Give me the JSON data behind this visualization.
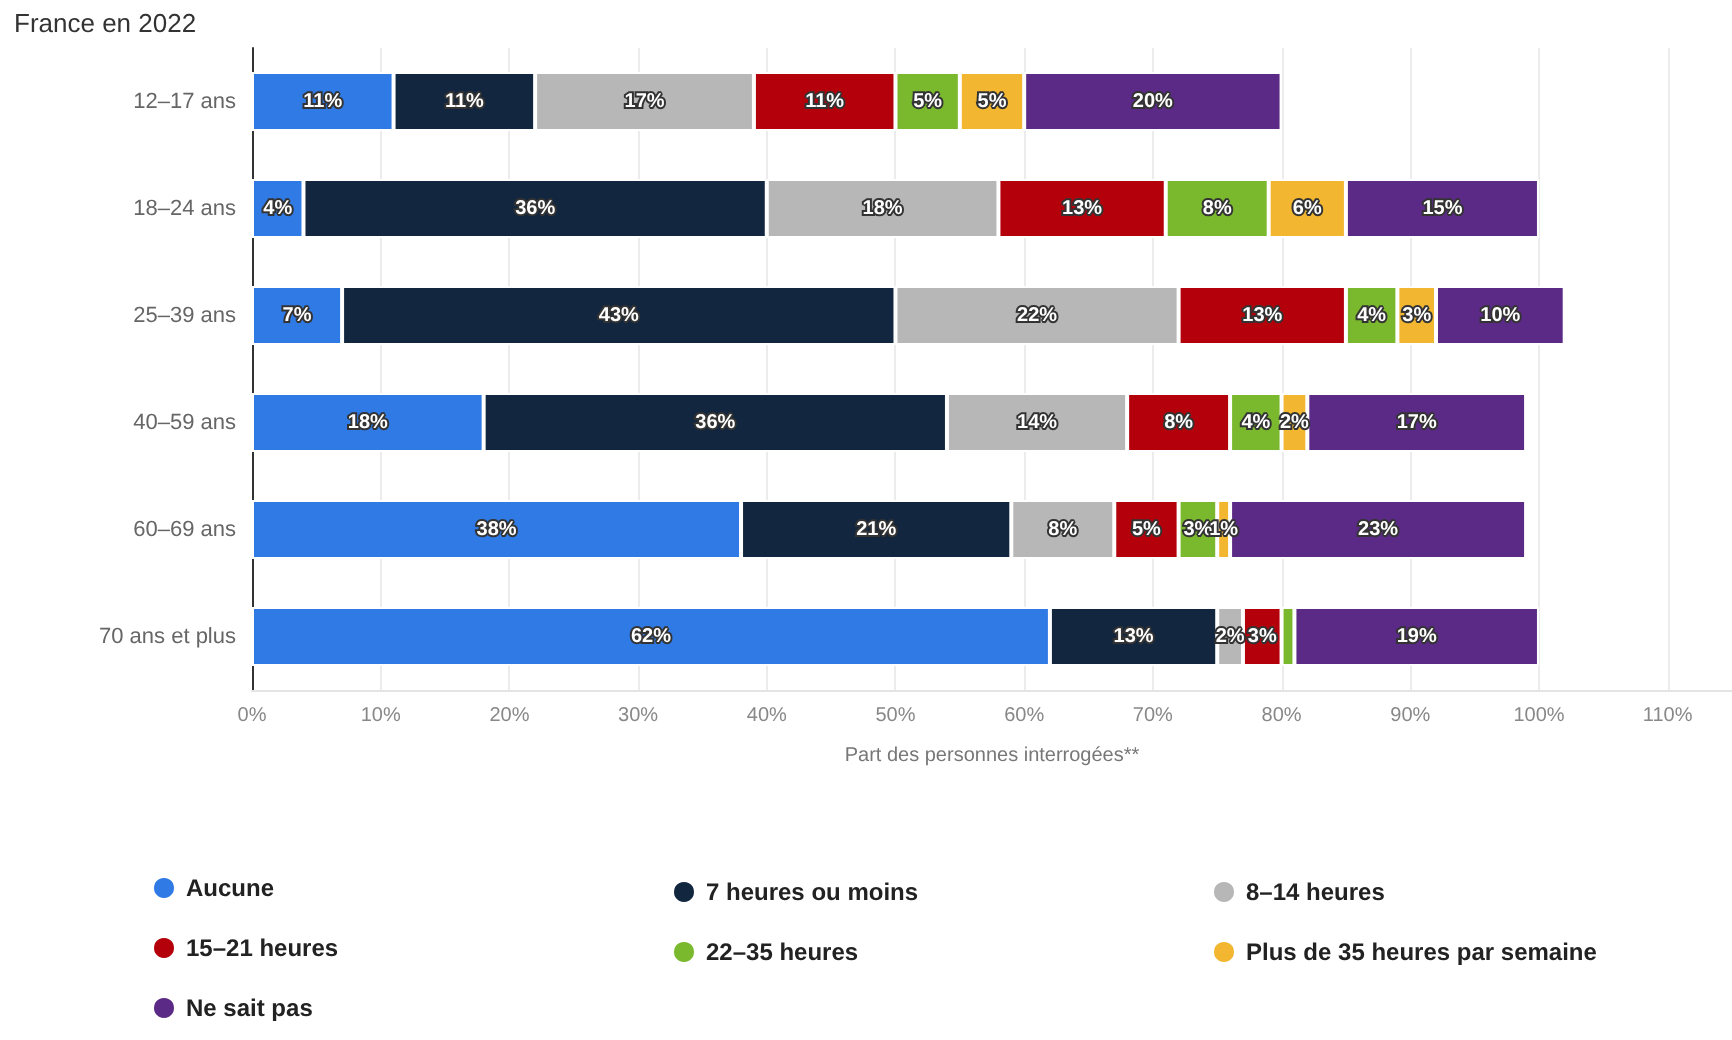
{
  "chart_data": {
    "type": "bar",
    "orientation": "horizontal",
    "stacked": true,
    "title": "France en 2022",
    "xlabel": "Part des personnes interrogées**",
    "categories": [
      "12–17 ans",
      "18–24 ans",
      "25–39 ans",
      "40–59 ans",
      "60–69 ans",
      "70 ans et plus"
    ],
    "xlim": [
      0,
      115
    ],
    "xticks": [
      {
        "value": 0,
        "label": "0%"
      },
      {
        "value": 10,
        "label": "10%"
      },
      {
        "value": 20,
        "label": "20%"
      },
      {
        "value": 30,
        "label": "30%"
      },
      {
        "value": 40,
        "label": "40%"
      },
      {
        "value": 50,
        "label": "50%"
      },
      {
        "value": 60,
        "label": "60%"
      },
      {
        "value": 70,
        "label": "70%"
      },
      {
        "value": 80,
        "label": "80%"
      },
      {
        "value": 90,
        "label": "90%"
      },
      {
        "value": 100,
        "label": "100%"
      },
      {
        "value": 110,
        "label": "110%"
      }
    ],
    "grid": "x",
    "legend": "bottom",
    "series": [
      {
        "name": "Aucune",
        "color": "#2f7ae5",
        "values": [
          11,
          4,
          7,
          18,
          38,
          62
        ],
        "value_labels": [
          "11%",
          "4%",
          "7%",
          "18%",
          "38%",
          "62%"
        ]
      },
      {
        "name": "7 heures ou moins",
        "color": "#12263f",
        "values": [
          11,
          36,
          43,
          36,
          21,
          13
        ],
        "value_labels": [
          "11%",
          "36%",
          "43%",
          "36%",
          "21%",
          "13%"
        ]
      },
      {
        "name": "8–14 heures",
        "color": "#b7b7b7",
        "values": [
          17,
          18,
          22,
          14,
          8,
          2
        ],
        "value_labels": [
          "17%",
          "18%",
          "22%",
          "14%",
          "8%",
          "2%"
        ]
      },
      {
        "name": "15–21 heures",
        "color": "#b3000b",
        "values": [
          11,
          13,
          13,
          8,
          5,
          3
        ],
        "value_labels": [
          "11%",
          "13%",
          "13%",
          "8%",
          "5%",
          "3%"
        ]
      },
      {
        "name": "22–35 heures",
        "color": "#7ab92e",
        "values": [
          5,
          8,
          4,
          4,
          3,
          1
        ],
        "value_labels": [
          "5%",
          "8%",
          "4%",
          "4%",
          "3%",
          null
        ]
      },
      {
        "name": "Plus de 35 heures par semaine",
        "color": "#f2b630",
        "values": [
          5,
          6,
          3,
          2,
          1,
          0
        ],
        "value_labels": [
          "5%",
          "6%",
          "3%",
          "2%",
          "1%",
          null
        ]
      },
      {
        "name": "Ne sait pas",
        "color": "#5b2a86",
        "values": [
          20,
          15,
          10,
          17,
          23,
          19
        ],
        "value_labels": [
          "20%",
          "15%",
          "10%",
          "17%",
          "23%",
          "19%"
        ]
      }
    ]
  }
}
